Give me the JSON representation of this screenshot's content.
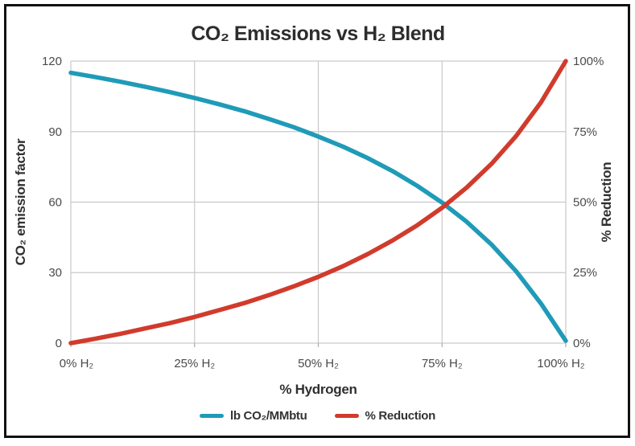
{
  "title": "CO₂ Emissions vs H₂ Blend",
  "colors": {
    "co2_line": "#1f9bb8",
    "reduction_line": "#d13b2c",
    "grid": "#c9c9c9",
    "frame_border": "#111111",
    "text_dark": "#2d2d2d",
    "text_tick": "#4a4a4a"
  },
  "chart_data": {
    "type": "line",
    "title": "CO₂ Emissions vs H₂ Blend",
    "xlabel": "% Hydrogen",
    "ylabel_left": "CO₂ emission factor",
    "ylabel_right": "% Reduction",
    "xlim": [
      0,
      100
    ],
    "ylim_left": [
      0,
      120
    ],
    "ylim_right": [
      0,
      100
    ],
    "grid": true,
    "legend_position": "bottom",
    "x_tick_values": [
      0,
      25,
      50,
      75,
      100
    ],
    "x_tick_labels": [
      "0% H₂",
      "25% H₂",
      "50% H₂",
      "75% H₂",
      "100% H₂"
    ],
    "yleft_tick_values": [
      0,
      30,
      60,
      90,
      120
    ],
    "yleft_tick_labels_topdown": [
      "120",
      "90",
      "60",
      "30",
      "0"
    ],
    "yright_tick_labels_topdown": [
      "100%",
      "75%",
      "50%",
      "25%",
      "0%"
    ],
    "x": [
      0,
      5,
      10,
      15,
      20,
      25,
      30,
      35,
      40,
      45,
      50,
      55,
      60,
      65,
      70,
      75,
      80,
      85,
      90,
      95,
      100
    ],
    "series": [
      {
        "name": "lb CO₂/MMbtu",
        "axis": "left",
        "color": "#1f9bb8",
        "values": [
          115,
          113.2,
          111.2,
          109.1,
          106.8,
          104.3,
          101.6,
          98.7,
          95.4,
          91.9,
          87.9,
          83.6,
          78.7,
          73.2,
          66.9,
          59.8,
          51.6,
          41.9,
          30.5,
          16.8,
          1.0
        ]
      },
      {
        "name": "% Reduction",
        "axis": "right",
        "color": "#d13b2c",
        "values": [
          0,
          1.6,
          3.3,
          5.2,
          7.1,
          9.3,
          11.7,
          14.2,
          17.0,
          20.1,
          23.5,
          27.3,
          31.6,
          36.4,
          41.8,
          48.0,
          55.2,
          63.6,
          73.5,
          85.4,
          100
        ]
      }
    ]
  },
  "legend": {
    "items": [
      {
        "label": "lb CO₂/MMbtu",
        "color": "#1f9bb8"
      },
      {
        "label": "% Reduction",
        "color": "#d13b2c"
      }
    ]
  }
}
